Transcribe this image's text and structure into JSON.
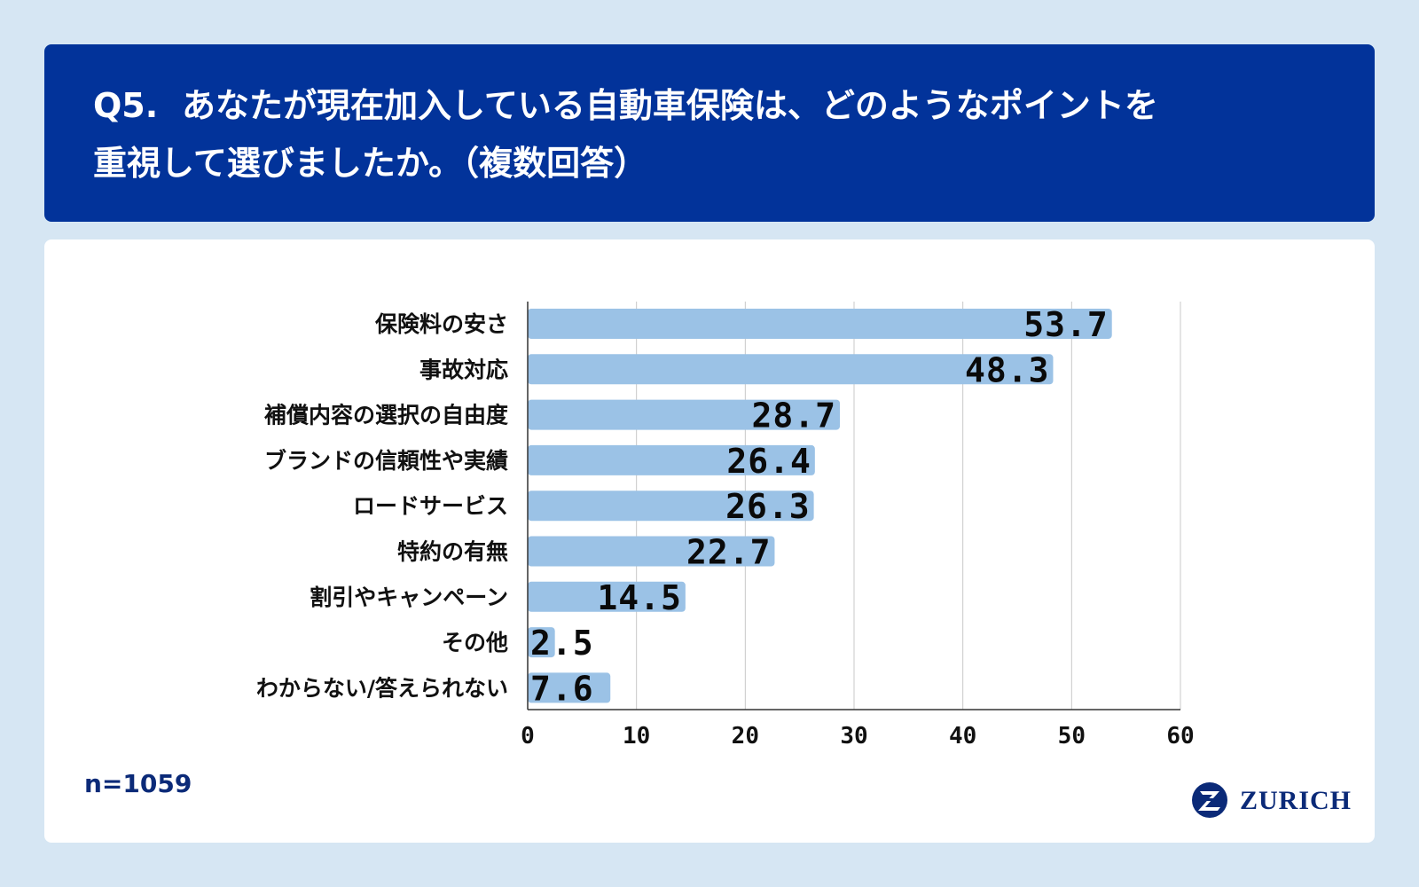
{
  "header": {
    "question_no": "Q5.",
    "title_line1": "あなたが現在加入している自動車保険は、どのようなポイントを",
    "title_line2": "重視して選びましたか。（複数回答）"
  },
  "footer": {
    "sample_size": "n=1059",
    "brand": "ZURICH"
  },
  "colors": {
    "header_bg": "#02339a",
    "bar": "#9bc2e6",
    "page_bg": "#d6e6f3"
  },
  "chart_data": {
    "type": "bar",
    "orientation": "horizontal",
    "categories": [
      "保険料の安さ",
      "事故対応",
      "補償内容の選択の自由度",
      "ブランドの信頼性や実績",
      "ロードサービス",
      "特約の有無",
      "割引やキャンペーン",
      "その他",
      "わからない/答えられない"
    ],
    "values": [
      53.7,
      48.3,
      28.7,
      26.4,
      26.3,
      22.7,
      14.5,
      2.5,
      7.6
    ],
    "value_labels": [
      "53.7",
      "48.3",
      "28.7",
      "26.4",
      "26.3",
      "22.7",
      "14.5",
      "2.5",
      "7.6"
    ],
    "xlim": [
      0,
      60
    ],
    "xticks": [
      0,
      10,
      20,
      30,
      40,
      50,
      60
    ],
    "grid": true,
    "legend": "none"
  }
}
